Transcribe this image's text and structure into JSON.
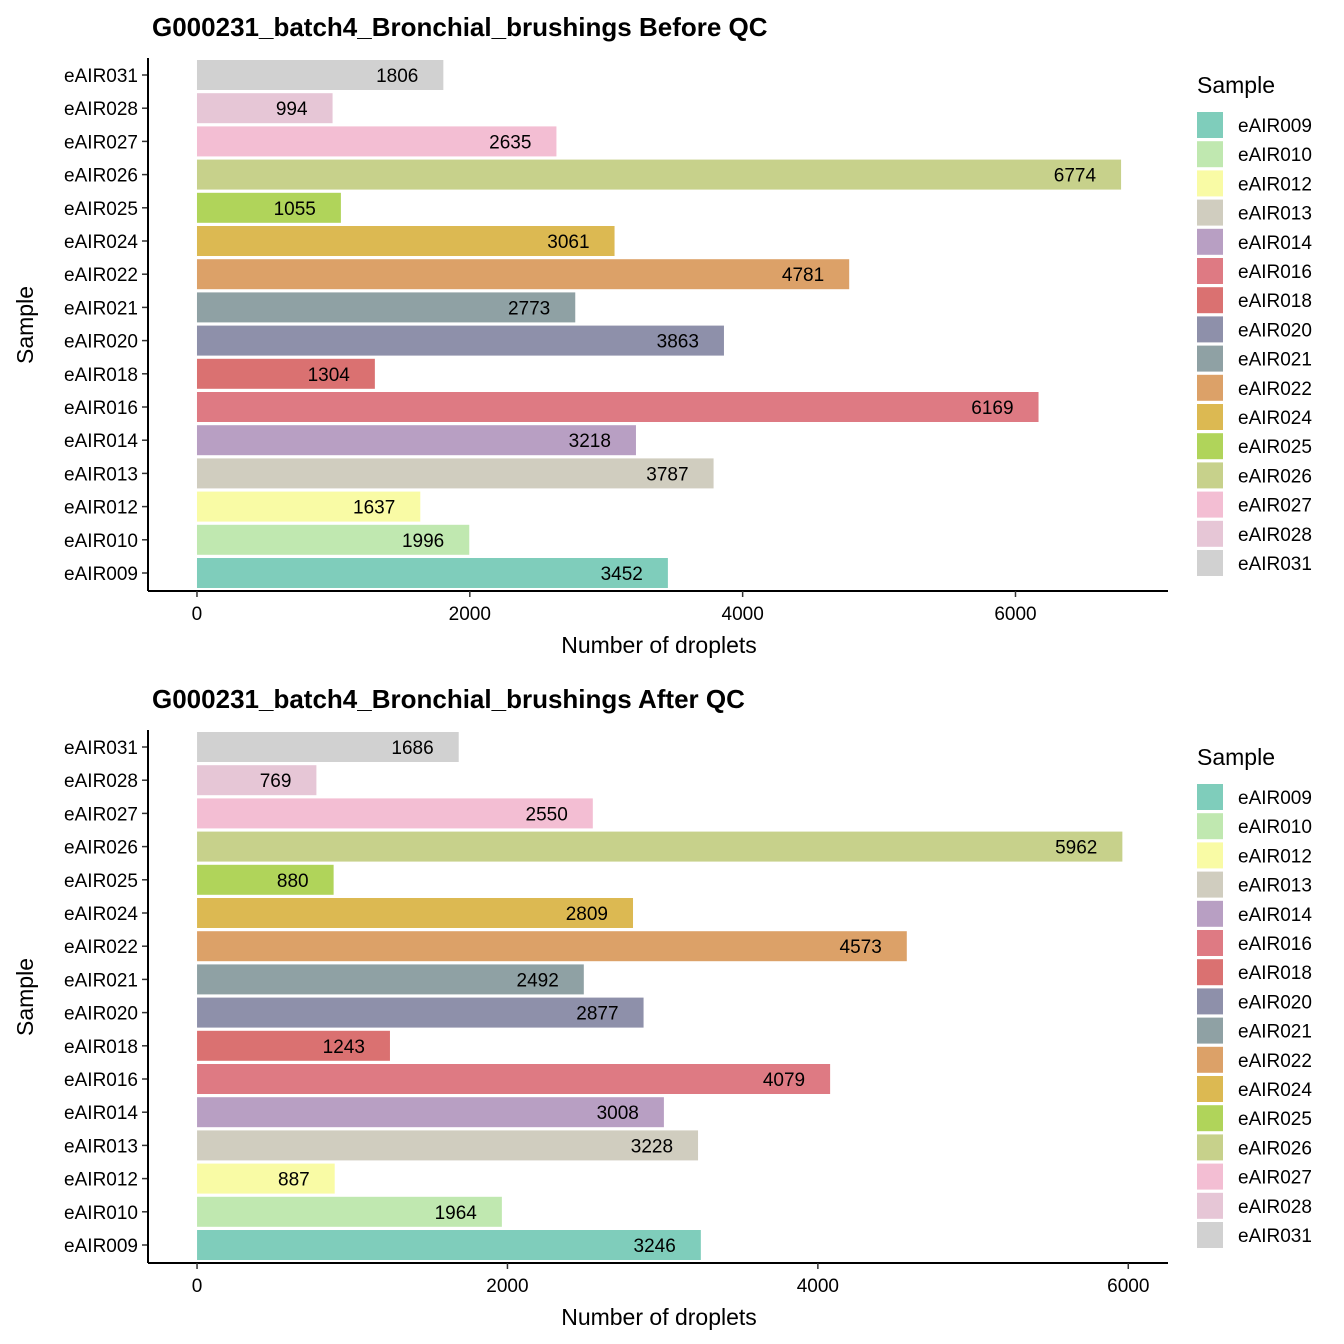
{
  "chart_data": [
    {
      "type": "bar",
      "orientation": "horizontal",
      "title": "G000231_batch4_Bronchial_brushings Before QC",
      "xlabel": "Number of droplets",
      "ylabel": "Sample",
      "xlim": [
        -359,
        7118
      ],
      "xticks": [
        0,
        2000,
        4000,
        6000
      ],
      "categories": [
        "eAIR009",
        "eAIR010",
        "eAIR012",
        "eAIR013",
        "eAIR014",
        "eAIR016",
        "eAIR018",
        "eAIR020",
        "eAIR021",
        "eAIR022",
        "eAIR024",
        "eAIR025",
        "eAIR026",
        "eAIR027",
        "eAIR028",
        "eAIR031"
      ],
      "values": [
        3452,
        1996,
        1637,
        3787,
        3218,
        6169,
        1304,
        3863,
        2773,
        4781,
        3061,
        1055,
        6774,
        2635,
        994,
        1806
      ],
      "legend_title": "Sample",
      "legend_position": "right",
      "grid": false
    },
    {
      "type": "bar",
      "orientation": "horizontal",
      "title": "G000231_batch4_Bronchial_brushings After QC",
      "xlabel": "Number of droplets",
      "ylabel": "Sample",
      "xlim": [
        -316,
        6256
      ],
      "xticks": [
        0,
        2000,
        4000,
        6000
      ],
      "categories": [
        "eAIR009",
        "eAIR010",
        "eAIR012",
        "eAIR013",
        "eAIR014",
        "eAIR016",
        "eAIR018",
        "eAIR020",
        "eAIR021",
        "eAIR022",
        "eAIR024",
        "eAIR025",
        "eAIR026",
        "eAIR027",
        "eAIR028",
        "eAIR031"
      ],
      "values": [
        3246,
        1964,
        887,
        3228,
        3008,
        4079,
        1243,
        2877,
        2492,
        4573,
        2809,
        880,
        5962,
        2550,
        769,
        1686
      ],
      "legend_title": "Sample",
      "legend_position": "right",
      "grid": false
    }
  ],
  "colors": {
    "eAIR009": "#7fcdbb",
    "eAIR010": "#c0e8b0",
    "eAIR012": "#f9fba5",
    "eAIR013": "#d0cdbf",
    "eAIR014": "#b89fc3",
    "eAIR016": "#de7a83",
    "eAIR018": "#da7171",
    "eAIR020": "#8e90aa",
    "eAIR021": "#8fa1a4",
    "eAIR022": "#dca168",
    "eAIR024": "#dcb952",
    "eAIR025": "#b0d45a",
    "eAIR026": "#c7d18b",
    "eAIR027": "#f3bed3",
    "eAIR028": "#e6c6d6",
    "eAIR031": "#d1d1d1"
  }
}
